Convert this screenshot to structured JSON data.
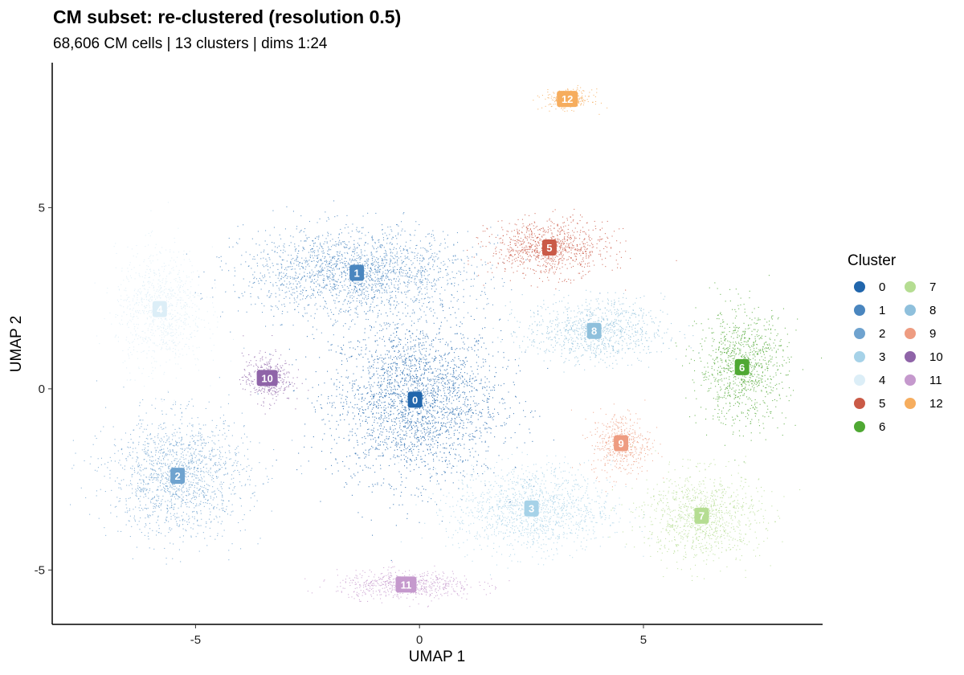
{
  "chart_data": {
    "type": "scatter",
    "title": "CM subset: re-clustered (resolution 0.5)",
    "subtitle": "68,606 CM cells | 13 clusters | dims 1:24",
    "xlabel": "UMAP 1",
    "ylabel": "UMAP 2",
    "xlim": [
      -8.2,
      9.0
    ],
    "ylim": [
      -6.5,
      9.0
    ],
    "xticks": [
      -5,
      0,
      5
    ],
    "yticks": [
      -5,
      0,
      5
    ],
    "legend_title": "Cluster",
    "legend_position": "right",
    "grid": false,
    "clusters": [
      {
        "id": "0",
        "color": "#2166ac",
        "center": [
          -0.1,
          -0.3
        ],
        "spread": [
          1.7,
          2.0
        ]
      },
      {
        "id": "1",
        "color": "#4a86bf",
        "center": [
          -1.4,
          3.2
        ],
        "spread": [
          2.3,
          1.1
        ]
      },
      {
        "id": "2",
        "color": "#6fa3cf",
        "center": [
          -5.4,
          -2.4
        ],
        "spread": [
          1.4,
          1.5
        ]
      },
      {
        "id": "3",
        "color": "#a6d2e8",
        "center": [
          2.5,
          -3.3
        ],
        "spread": [
          1.6,
          1.1
        ]
      },
      {
        "id": "4",
        "color": "#dceef7",
        "center": [
          -5.8,
          2.2
        ],
        "spread": [
          0.9,
          1.5
        ]
      },
      {
        "id": "5",
        "color": "#ca5a47",
        "center": [
          2.9,
          3.9
        ],
        "spread": [
          1.2,
          0.7
        ]
      },
      {
        "id": "6",
        "color": "#4fa833",
        "center": [
          7.2,
          0.6
        ],
        "spread": [
          0.9,
          1.4
        ]
      },
      {
        "id": "7",
        "color": "#b5dd92",
        "center": [
          6.3,
          -3.5
        ],
        "spread": [
          1.2,
          1.1
        ]
      },
      {
        "id": "8",
        "color": "#8fc0dc",
        "center": [
          3.9,
          1.6
        ],
        "spread": [
          1.4,
          0.8
        ]
      },
      {
        "id": "9",
        "color": "#ee9c81",
        "center": [
          4.5,
          -1.5
        ],
        "spread": [
          0.6,
          0.8
        ]
      },
      {
        "id": "10",
        "color": "#8f64a8",
        "center": [
          -3.4,
          0.3
        ],
        "spread": [
          0.5,
          0.6
        ]
      },
      {
        "id": "11",
        "color": "#c599cd",
        "center": [
          -0.3,
          -5.4
        ],
        "spread": [
          1.4,
          0.35
        ]
      },
      {
        "id": "12",
        "color": "#f6ad5e",
        "center": [
          3.3,
          8.0
        ],
        "spread": [
          0.5,
          0.25
        ]
      }
    ]
  }
}
